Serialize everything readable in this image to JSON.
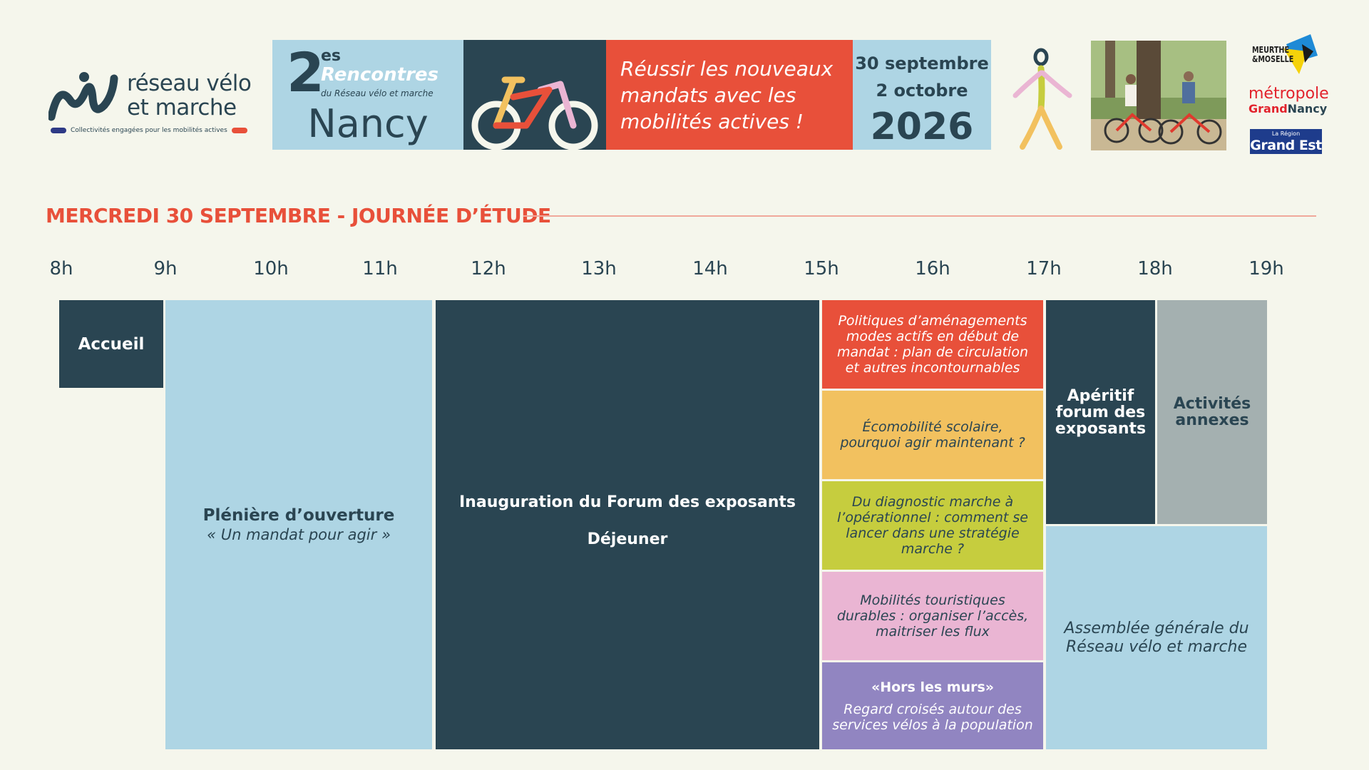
{
  "colors": {
    "background": "#f5f6ec",
    "dark": "#2a4552",
    "light_blue": "#aed5e4",
    "red": "#e8503a",
    "orange": "#f2c15f",
    "lime": "#c6cd3e",
    "pink": "#eab5d3",
    "purple": "#9185c1",
    "grey": "#a4b0b0"
  },
  "logo": {
    "line1": "réseau vélo",
    "line2": "et marche",
    "tagline": "Collectivités engagées pour les mobilités actives"
  },
  "banner": {
    "number": "2",
    "ordinal": "es",
    "title": "Rencontres",
    "subtitle": "du Réseau vélo et marche",
    "city": "Nancy",
    "message": "Réussir les nouveaux mandats avec les mobilités actives !",
    "date1": "30 septembre",
    "date2": "2 octobre",
    "year": "2026"
  },
  "partners": {
    "dept_line1": "MEURTHE",
    "dept_line2": "&MOSELLE",
    "metro_line1": "métropole",
    "metro_grand": "Grand",
    "metro_nancy": "Nancy",
    "region_line1": "La Région",
    "region_line2": "Grand Est"
  },
  "section_title": "MERCREDI 30 SEPTEMBRE - JOURNÉE D’ÉTUDE",
  "hours": [
    "8h",
    "9h",
    "10h",
    "11h",
    "12h",
    "13h",
    "14h",
    "15h",
    "16h",
    "17h",
    "18h",
    "19h"
  ],
  "schedule": {
    "accueil": "Accueil",
    "pleniere_title": "Plénière d’ouverture",
    "pleniere_sub": "« Un mandat pour agir »",
    "inauguration": "Inauguration du Forum des exposants",
    "dejeuner": "Déjeuner",
    "workshop1": "Politiques d’aménagements modes actifs en début de mandat : plan de circulation et autres incontournables",
    "workshop2": "Écomobilité scolaire, pourquoi agir maintenant ?",
    "workshop3": "Du diagnostic marche à l’opérationnel : comment se lancer dans une stratégie marche ?",
    "workshop4": "Mobilités touristiques durables : organiser l’accès, maitriser les flux",
    "workshop5_title": "«Hors les murs»",
    "workshop5_desc": "Regard croisés autour des services vélos à la population",
    "aperitif": "Apéritif forum des exposants",
    "activites": "Activités annexes",
    "assemblee": "Assemblée générale du Réseau vélo et marche"
  }
}
